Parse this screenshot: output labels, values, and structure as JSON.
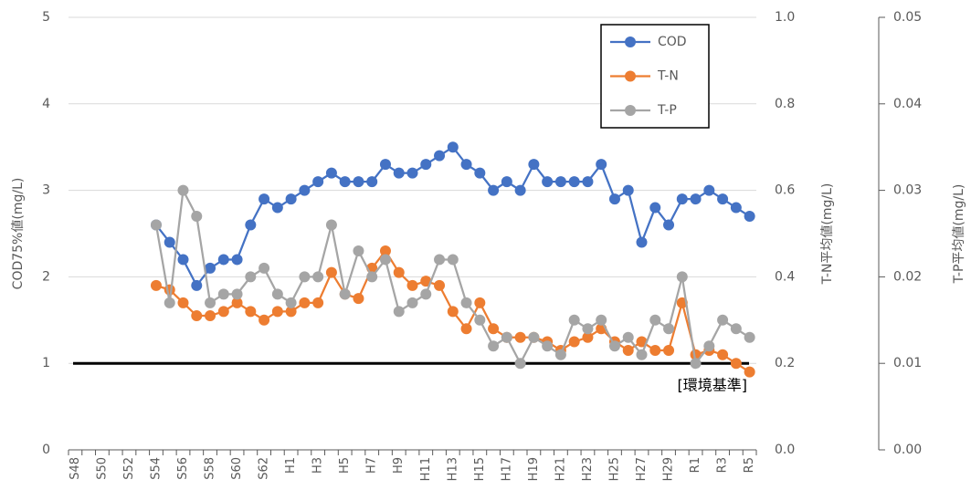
{
  "chart_data": {
    "type": "line",
    "categories": [
      "S48",
      null,
      "S50",
      null,
      "S52",
      null,
      "S54",
      null,
      "S56",
      null,
      "S58",
      null,
      "S60",
      null,
      "S62",
      null,
      "H1",
      null,
      "H3",
      null,
      "H5",
      null,
      "H7",
      null,
      "H9",
      null,
      "H11",
      null,
      "H13",
      null,
      "H15",
      null,
      "H17",
      null,
      "H19",
      null,
      "H21",
      null,
      "H23",
      null,
      "H25",
      null,
      "H27",
      null,
      "H29",
      null,
      "R1",
      null,
      "R3",
      null,
      "R5"
    ],
    "ylabel": "COD75%値(mg/L)",
    "y2label": "T-N平均値(mg/L)",
    "y3label": "T-P平均値(mg/L)",
    "ylim": [
      0,
      5
    ],
    "yticks": [
      0,
      1,
      2,
      3,
      4,
      5
    ],
    "y2lim": [
      0,
      1
    ],
    "y2ticks": [
      {
        "value": 0,
        "label": "0.0"
      },
      0.2,
      0.4,
      0.6,
      0.8,
      {
        "value": 1,
        "label": "1.0"
      }
    ],
    "y3lim": [
      0,
      0.05
    ],
    "y3ticks": [
      {
        "value": 0,
        "label": "0.00"
      },
      0.01,
      0.02,
      0.03,
      0.04,
      0.05
    ],
    "grid": true,
    "legend": "upper right",
    "reference_line": {
      "value": 1,
      "label": "[環境基準]",
      "color": "#000000"
    },
    "series": [
      {
        "name": "COD",
        "color": "#4472c4",
        "axis": "y",
        "values": [
          null,
          null,
          null,
          null,
          null,
          null,
          2.6,
          2.4,
          2.2,
          1.9,
          2.1,
          2.2,
          2.2,
          2.6,
          2.9,
          2.8,
          2.9,
          3.0,
          3.1,
          3.2,
          3.1,
          3.1,
          3.1,
          3.3,
          3.2,
          3.2,
          3.3,
          3.4,
          3.5,
          3.3,
          3.2,
          3.0,
          3.1,
          3.0,
          3.3,
          3.1,
          3.1,
          3.1,
          3.1,
          3.3,
          2.9,
          3.0,
          2.4,
          2.8,
          2.6,
          2.9,
          2.9,
          3.0,
          2.9,
          2.8,
          2.7
        ]
      },
      {
        "name": "T-N",
        "color": "#ed7d31",
        "axis": "y2",
        "values": [
          null,
          null,
          null,
          null,
          null,
          null,
          0.38,
          0.37,
          0.34,
          0.31,
          0.31,
          0.32,
          0.34,
          0.32,
          0.3,
          0.32,
          0.32,
          0.34,
          0.34,
          0.41,
          0.36,
          0.35,
          0.42,
          0.46,
          0.41,
          0.38,
          0.39,
          0.38,
          0.32,
          0.28,
          0.34,
          0.28,
          0.26,
          0.26,
          0.26,
          0.25,
          0.23,
          0.25,
          0.26,
          0.28,
          0.25,
          0.23,
          0.25,
          0.23,
          0.23,
          0.34,
          0.22,
          0.23,
          0.22,
          0.2,
          0.18
        ]
      },
      {
        "name": "T-P",
        "color": "#a5a5a5",
        "axis": "y3",
        "values": [
          null,
          null,
          null,
          null,
          null,
          null,
          0.026,
          0.017,
          0.03,
          0.027,
          0.017,
          0.018,
          0.018,
          0.02,
          0.021,
          0.018,
          0.017,
          0.02,
          0.02,
          0.026,
          0.018,
          0.023,
          0.02,
          0.022,
          0.016,
          0.017,
          0.018,
          0.022,
          0.022,
          0.017,
          0.015,
          0.012,
          0.013,
          0.01,
          0.013,
          0.012,
          0.011,
          0.015,
          0.014,
          0.015,
          0.012,
          0.013,
          0.011,
          0.015,
          0.014,
          0.02,
          0.01,
          0.012,
          0.015,
          0.014,
          0.013
        ]
      }
    ]
  }
}
